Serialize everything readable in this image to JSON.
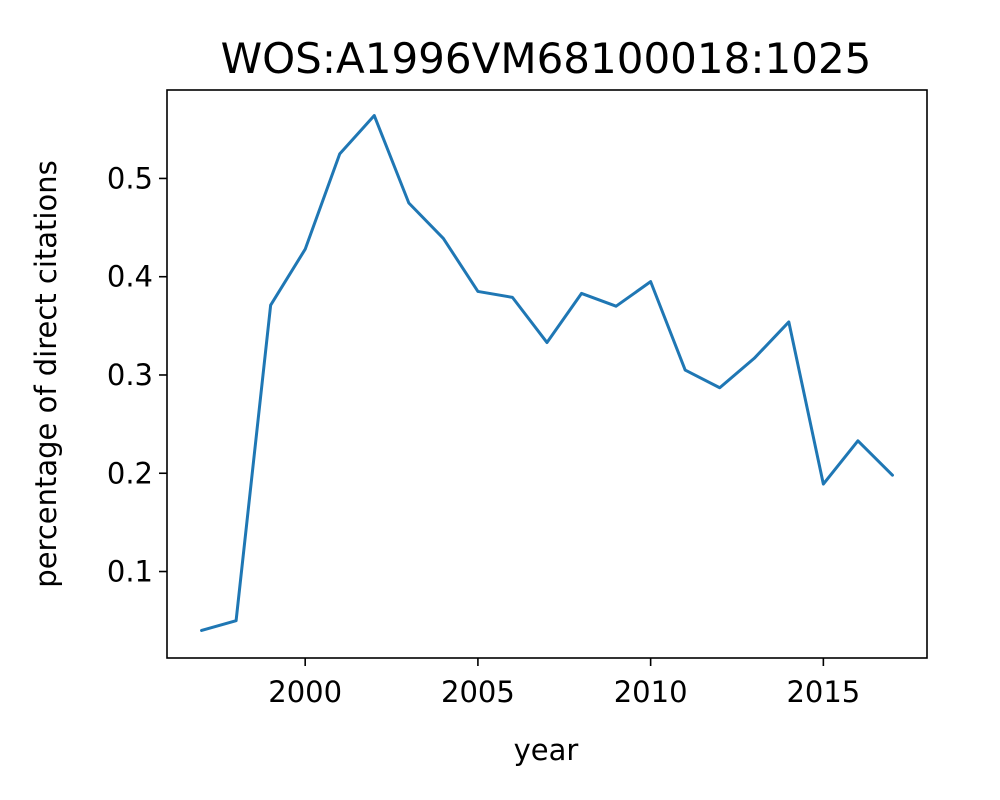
{
  "chart_data": {
    "type": "line",
    "title": "WOS:A1996VM68100018:1025",
    "xlabel": "year",
    "ylabel": "percentage of direct citations",
    "xlim": [
      1996.0,
      2018.0
    ],
    "ylim": [
      0.012,
      0.59
    ],
    "xticks": [
      2000,
      2005,
      2010,
      2015
    ],
    "yticks": [
      0.1,
      0.2,
      0.3,
      0.4,
      0.5
    ],
    "xtick_labels": [
      "2000",
      "2005",
      "2010",
      "2015"
    ],
    "ytick_labels": [
      "0.1",
      "0.2",
      "0.3",
      "0.4",
      "0.5"
    ],
    "grid": false,
    "legend": "none",
    "series": [
      {
        "color": "#1f77b4",
        "x": [
          1997,
          1998,
          1999,
          2000,
          2001,
          2002,
          2003,
          2004,
          2005,
          2006,
          2007,
          2008,
          2009,
          2010,
          2011,
          2012,
          2013,
          2014,
          2015,
          2016,
          2017
        ],
        "y": [
          0.04,
          0.05,
          0.371,
          0.428,
          0.525,
          0.564,
          0.475,
          0.439,
          0.385,
          0.379,
          0.333,
          0.383,
          0.37,
          0.395,
          0.305,
          0.287,
          0.317,
          0.354,
          0.189,
          0.233,
          0.198
        ]
      }
    ]
  }
}
